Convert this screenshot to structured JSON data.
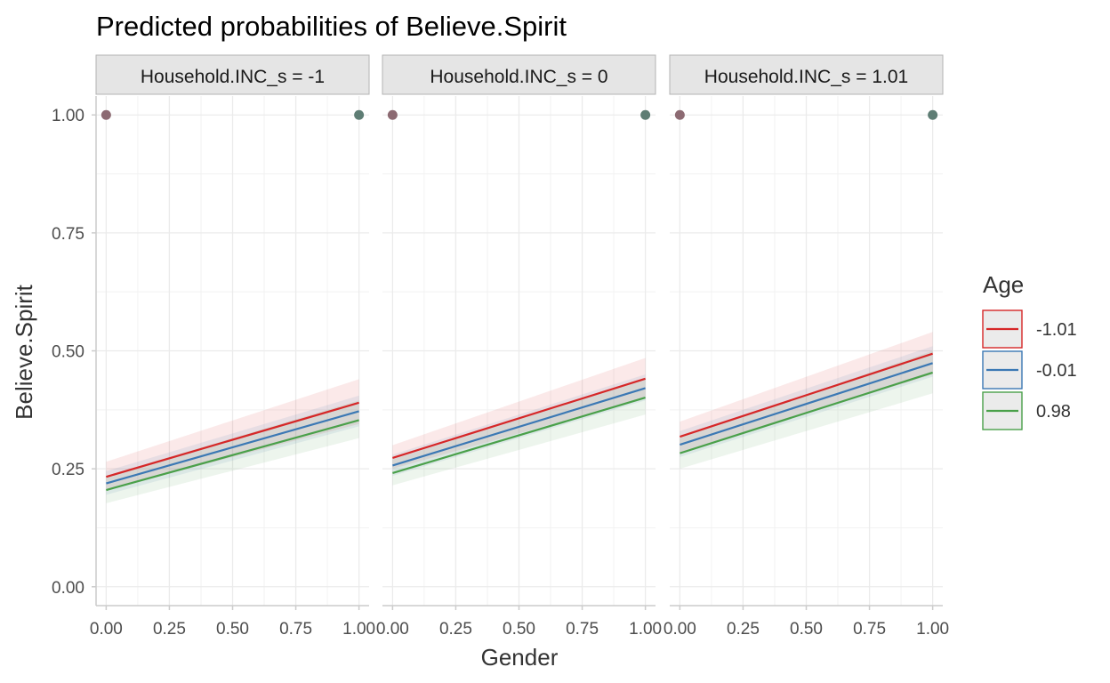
{
  "chart_data": {
    "type": "line",
    "title": "Predicted probabilities of Believe.Spirit",
    "xlabel": "Gender",
    "ylabel": "Believe.Spirit",
    "xlim": [
      -0.04,
      1.04
    ],
    "ylim": [
      -0.04,
      1.04
    ],
    "x_ticks": [
      0,
      0.25,
      0.5,
      0.75,
      1
    ],
    "x_tick_labels": [
      "0.00",
      "0.25",
      "0.50",
      "0.75",
      "1.00"
    ],
    "y_ticks": [
      0,
      0.25,
      0.5,
      0.75,
      1
    ],
    "y_tick_labels": [
      "0.00",
      "0.25",
      "0.50",
      "0.75",
      "1.00"
    ],
    "grid": true,
    "legend": {
      "title": "Age",
      "position": "right",
      "entries": [
        {
          "label": "-1.01",
          "color": "#d62728"
        },
        {
          "label": "-0.01",
          "color": "#3b78b4"
        },
        {
          "label": "0.98",
          "color": "#4aa04a"
        }
      ]
    },
    "panels": [
      {
        "label": "Household.INC_s = -1",
        "series": [
          {
            "name": "-1.01",
            "x": [
              0,
              1
            ],
            "y": [
              0.233,
              0.39
            ],
            "lower": [
              0.205,
              0.345
            ],
            "upper": [
              0.265,
              0.44
            ]
          },
          {
            "name": "-0.01",
            "x": [
              0,
              1
            ],
            "y": [
              0.219,
              0.372
            ],
            "lower": [
              0.195,
              0.34
            ],
            "upper": [
              0.245,
              0.405
            ]
          },
          {
            "name": "0.98",
            "x": [
              0,
              1
            ],
            "y": [
              0.205,
              0.353
            ],
            "lower": [
              0.177,
              0.315
            ],
            "upper": [
              0.235,
              0.395
            ]
          }
        ],
        "points": [
          {
            "x": 0,
            "y": 1,
            "color": "#8c6a72"
          },
          {
            "x": 1,
            "y": 1,
            "color": "#5e7d74"
          }
        ]
      },
      {
        "label": "Household.INC_s = 0",
        "series": [
          {
            "name": "-1.01",
            "x": [
              0,
              1
            ],
            "y": [
              0.273,
              0.441
            ],
            "lower": [
              0.25,
              0.4
            ],
            "upper": [
              0.3,
              0.485
            ]
          },
          {
            "name": "-0.01",
            "x": [
              0,
              1
            ],
            "y": [
              0.257,
              0.421
            ],
            "lower": [
              0.235,
              0.395
            ],
            "upper": [
              0.28,
              0.45
            ]
          },
          {
            "name": "0.98",
            "x": [
              0,
              1
            ],
            "y": [
              0.241,
              0.401
            ],
            "lower": [
              0.215,
              0.365
            ],
            "upper": [
              0.27,
              0.44
            ]
          }
        ],
        "points": [
          {
            "x": 0,
            "y": 1,
            "color": "#8c6a72"
          },
          {
            "x": 1,
            "y": 1,
            "color": "#5e7d74"
          }
        ]
      },
      {
        "label": "Household.INC_s = 1.01",
        "series": [
          {
            "name": "-1.01",
            "x": [
              0,
              1
            ],
            "y": [
              0.318,
              0.494
            ],
            "lower": [
              0.285,
              0.45
            ],
            "upper": [
              0.35,
              0.54
            ]
          },
          {
            "name": "-0.01",
            "x": [
              0,
              1
            ],
            "y": [
              0.301,
              0.474
            ],
            "lower": [
              0.275,
              0.445
            ],
            "upper": [
              0.33,
              0.51
            ]
          },
          {
            "name": "0.98",
            "x": [
              0,
              1
            ],
            "y": [
              0.283,
              0.454
            ],
            "lower": [
              0.25,
              0.41
            ],
            "upper": [
              0.315,
              0.5
            ]
          }
        ],
        "points": [
          {
            "x": 0,
            "y": 1,
            "color": "#8c6a72"
          },
          {
            "x": 1,
            "y": 1,
            "color": "#5e7d74"
          }
        ]
      }
    ]
  }
}
